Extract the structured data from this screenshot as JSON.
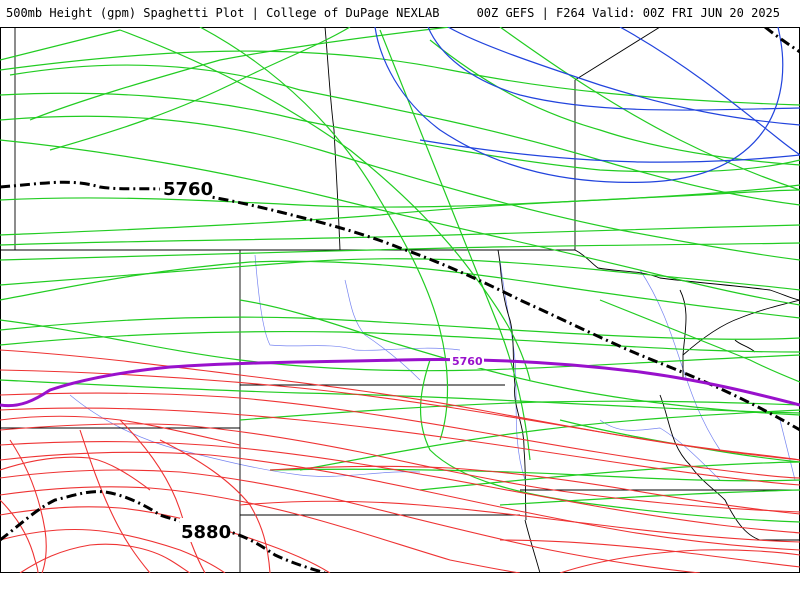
{
  "header": {
    "title": "500mb Height (gpm) Spaghetti Plot | College of DuPage NEXLAB",
    "run_info": "00Z GEFS | F264 Valid: 00Z FRI JUN 20 2025"
  },
  "contour_labels": {
    "c5760_black": "5760",
    "c5880_black": "5880",
    "c5760_mean": "5760"
  },
  "colors": {
    "green_members": "#22cc22",
    "red_members": "#ee3333",
    "blue_members": "#2244dd",
    "mean_contour": "#9911cc",
    "thick_contours": "#000000",
    "rivers": "#5566ee",
    "borders": "#000000"
  }
}
